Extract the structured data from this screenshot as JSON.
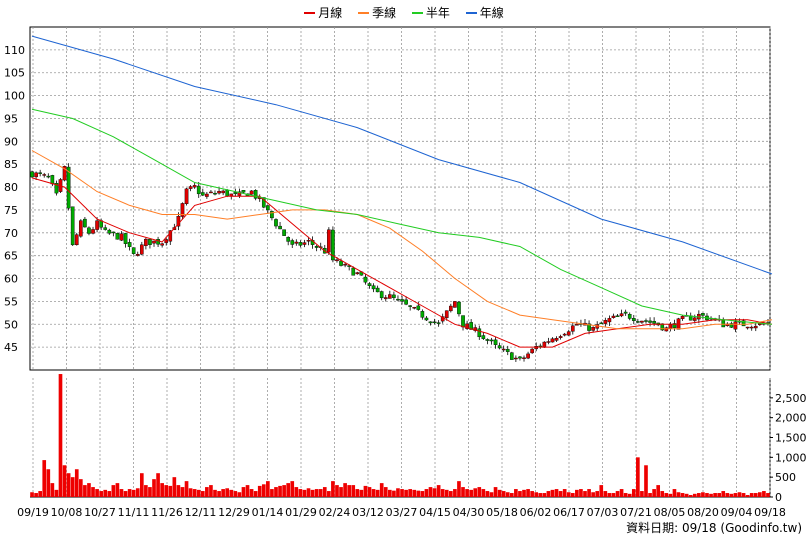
{
  "legend": [
    {
      "label": "月線",
      "color": "#e00000"
    },
    {
      "label": "季線",
      "color": "#ff7f27"
    },
    {
      "label": "半年",
      "color": "#22cc22"
    },
    {
      "label": "年線",
      "color": "#1e64d2"
    }
  ],
  "footer": {
    "date_label": "資料日期: 09/18",
    "source": "(Goodinfo.tw)"
  },
  "chart_data": [
    {
      "type": "candlestick",
      "ylim": [
        40,
        115
      ],
      "yticks": [
        45,
        50,
        55,
        60,
        65,
        70,
        75,
        80,
        85,
        90,
        95,
        100,
        105,
        110
      ],
      "xticks": [
        "09/19",
        "10/08",
        "10/27",
        "11/11",
        "11/26",
        "12/11",
        "12/29",
        "01/14",
        "01/29",
        "02/24",
        "03/12",
        "03/27",
        "04/15",
        "04/30",
        "05/18",
        "06/02",
        "06/17",
        "07/03",
        "07/21",
        "08/05",
        "08/20",
        "09/04",
        "09/18"
      ],
      "grid": true,
      "legend_position": "top",
      "close_path": [
        [
          0,
          83
        ],
        [
          4,
          82
        ],
        [
          6,
          78
        ],
        [
          8,
          84
        ],
        [
          10,
          67
        ],
        [
          12,
          72
        ],
        [
          14,
          70
        ],
        [
          16,
          72
        ],
        [
          18,
          70
        ],
        [
          22,
          69
        ],
        [
          25,
          65
        ],
        [
          28,
          68
        ],
        [
          32,
          68
        ],
        [
          36,
          73
        ],
        [
          38,
          79
        ],
        [
          40,
          80
        ],
        [
          42,
          78
        ],
        [
          46,
          79
        ],
        [
          50,
          78
        ],
        [
          54,
          79
        ],
        [
          56,
          77
        ],
        [
          60,
          72
        ],
        [
          64,
          67
        ],
        [
          68,
          68
        ],
        [
          72,
          66
        ],
        [
          73,
          70
        ],
        [
          74,
          64
        ],
        [
          76,
          63
        ],
        [
          80,
          61
        ],
        [
          84,
          57
        ],
        [
          88,
          56
        ],
        [
          92,
          54
        ],
        [
          96,
          52
        ],
        [
          100,
          50
        ],
        [
          104,
          55
        ],
        [
          106,
          50
        ],
        [
          110,
          48
        ],
        [
          114,
          45
        ],
        [
          118,
          43
        ],
        [
          120,
          42
        ],
        [
          124,
          45
        ],
        [
          128,
          47
        ],
        [
          132,
          49
        ],
        [
          134,
          50
        ],
        [
          138,
          49
        ],
        [
          142,
          51
        ],
        [
          146,
          52
        ],
        [
          150,
          51
        ],
        [
          154,
          50
        ],
        [
          156,
          49
        ],
        [
          160,
          51
        ],
        [
          164,
          52
        ],
        [
          168,
          51
        ],
        [
          170,
          50
        ],
        [
          174,
          50
        ],
        [
          178,
          50
        ],
        [
          182,
          50
        ]
      ],
      "series": [
        {
          "name": "月線",
          "points": [
            [
              0,
              82
            ],
            [
              8,
              80
            ],
            [
              16,
              73
            ],
            [
              24,
              70
            ],
            [
              32,
              68
            ],
            [
              40,
              76
            ],
            [
              48,
              78
            ],
            [
              56,
              78
            ],
            [
              64,
              72
            ],
            [
              72,
              66
            ],
            [
              80,
              62
            ],
            [
              88,
              58
            ],
            [
              96,
              54
            ],
            [
              104,
              50
            ],
            [
              112,
              48
            ],
            [
              120,
              45
            ],
            [
              128,
              45
            ],
            [
              136,
              48
            ],
            [
              144,
              49
            ],
            [
              152,
              50
            ],
            [
              160,
              50
            ],
            [
              168,
              51
            ],
            [
              176,
              51
            ],
            [
              182,
              50
            ]
          ]
        },
        {
          "name": "季線",
          "points": [
            [
              0,
              88
            ],
            [
              8,
              84
            ],
            [
              16,
              79
            ],
            [
              24,
              76
            ],
            [
              32,
              74
            ],
            [
              40,
              74
            ],
            [
              48,
              73
            ],
            [
              56,
              74
            ],
            [
              64,
              75
            ],
            [
              72,
              75
            ],
            [
              80,
              74
            ],
            [
              88,
              71
            ],
            [
              96,
              66
            ],
            [
              104,
              60
            ],
            [
              112,
              55
            ],
            [
              120,
              52
            ],
            [
              128,
              51
            ],
            [
              136,
              50
            ],
            [
              144,
              49
            ],
            [
              152,
              49
            ],
            [
              160,
              49
            ],
            [
              168,
              50
            ],
            [
              176,
              50
            ],
            [
              182,
              51
            ]
          ]
        },
        {
          "name": "半年",
          "points": [
            [
              0,
              97
            ],
            [
              10,
              95
            ],
            [
              20,
              91
            ],
            [
              30,
              86
            ],
            [
              40,
              81
            ],
            [
              50,
              79
            ],
            [
              60,
              77
            ],
            [
              70,
              75
            ],
            [
              80,
              74
            ],
            [
              90,
              72
            ],
            [
              100,
              70
            ],
            [
              110,
              69
            ],
            [
              120,
              67
            ],
            [
              130,
              62
            ],
            [
              140,
              58
            ],
            [
              150,
              54
            ],
            [
              160,
              52
            ],
            [
              170,
              51
            ],
            [
              182,
              50
            ]
          ]
        },
        {
          "name": "年線",
          "points": [
            [
              0,
              113
            ],
            [
              20,
              108
            ],
            [
              40,
              102
            ],
            [
              60,
              98
            ],
            [
              80,
              93
            ],
            [
              100,
              86
            ],
            [
              120,
              81
            ],
            [
              140,
              73
            ],
            [
              160,
              68
            ],
            [
              182,
              61
            ]
          ]
        }
      ]
    },
    {
      "type": "bar",
      "ylim": [
        0,
        3000
      ],
      "yticks": [
        0,
        500,
        1000,
        1500,
        2000,
        2500
      ],
      "ytick_labels": [
        "0",
        "500",
        "1,000",
        "1,500",
        "2,000",
        "2,500"
      ],
      "volume": [
        120,
        100,
        150,
        930,
        700,
        350,
        180,
        3100,
        800,
        600,
        500,
        700,
        450,
        300,
        350,
        250,
        200,
        150,
        180,
        150,
        300,
        350,
        200,
        150,
        200,
        180,
        220,
        600,
        300,
        250,
        450,
        600,
        350,
        300,
        280,
        500,
        300,
        250,
        400,
        220,
        200,
        180,
        150,
        250,
        300,
        180,
        150,
        200,
        220,
        180,
        150,
        120,
        250,
        300,
        200,
        150,
        280,
        320,
        400,
        200,
        250,
        280,
        300,
        350,
        400,
        250,
        200,
        180,
        220,
        180,
        200,
        200,
        250,
        150,
        400,
        300,
        250,
        350,
        300,
        300,
        200,
        180,
        280,
        250,
        200,
        180,
        350,
        250,
        180,
        160,
        220,
        200,
        180,
        200,
        180,
        160,
        150,
        200,
        250,
        220,
        300,
        200,
        180,
        150,
        200,
        400,
        250,
        200,
        180,
        220,
        250,
        200,
        150,
        120,
        250,
        180,
        150,
        120,
        100,
        200,
        150,
        180,
        200,
        150,
        120,
        100,
        100,
        150,
        180,
        200,
        150,
        200,
        120,
        100,
        180,
        200,
        150,
        200,
        120,
        150,
        300,
        150,
        100,
        100,
        150,
        200,
        100,
        80,
        200,
        1000,
        150,
        800,
        100,
        200,
        300,
        150,
        100,
        80,
        200,
        120,
        100,
        80,
        50,
        80,
        100,
        120,
        100,
        80,
        100,
        100,
        150,
        100,
        80,
        100,
        120,
        100,
        50,
        100,
        100,
        120,
        150,
        100
      ]
    }
  ]
}
